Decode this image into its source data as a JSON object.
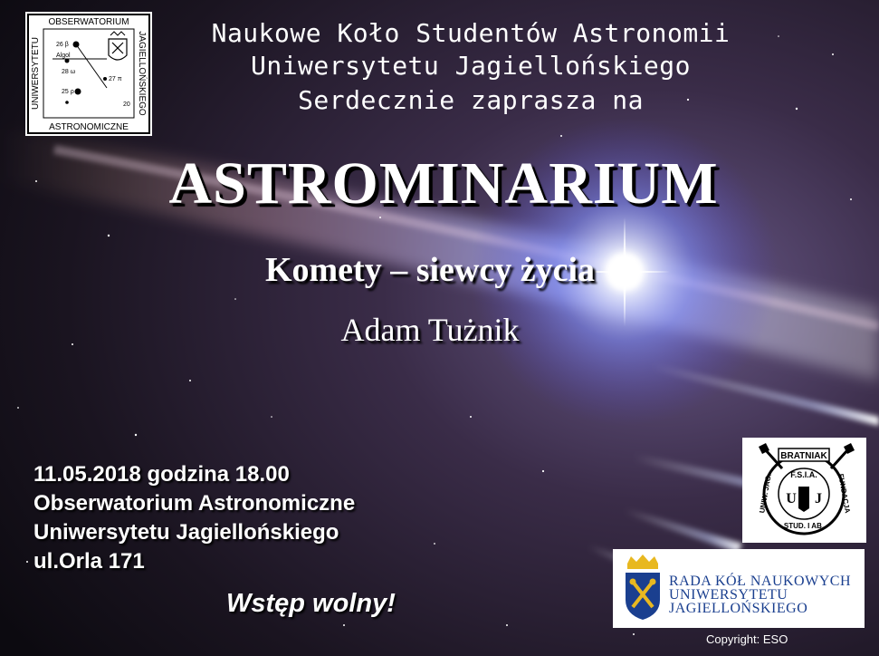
{
  "header": {
    "line1": "Naukowe Koło Studentów Astronomii",
    "line2": "Uniwersytetu Jagiellońskiego",
    "line3": "Serdecznie zaprasza na"
  },
  "title": "ASTROMINARIUM",
  "subtitle": "Komety – siewcy życia",
  "speaker": "Adam Tużnik",
  "event": {
    "datetime": "11.05.2018 godzina 18.00",
    "place1": "Obserwatorium Astronomiczne",
    "place2": "Uniwersytetu Jagiellońskiego",
    "address": "ul.Orla 171"
  },
  "entry": "Wstęp wolny!",
  "logo_observatory": {
    "top": "OBSERWATORIUM",
    "left": "UNIWERSYTETU",
    "right": "JAGIELLOŃSKIEGO",
    "bottom": "ASTRONOMICZNE",
    "star_labels": [
      "26 β",
      "Algol",
      "28 ω",
      "27 π",
      "25 ρ",
      "20"
    ]
  },
  "logo_fsia": {
    "banner": "BRATNIAK",
    "center": "F.S.I.A.",
    "left_letter": "U",
    "right_letter": "J",
    "left_arc": "UNIW. JAG.",
    "right_arc": "FUNDACJA",
    "bottom_arc": "STUD. I AB."
  },
  "logo_rada": {
    "line1": "RADA KÓŁ NAUKOWYCH",
    "line2": "UNIWERSYTETU",
    "line3": "JAGIELLOŃSKIEGO"
  },
  "copyright": "Copyright: ESO",
  "colors": {
    "text": "#ffffff",
    "rada_blue": "#1a3f8f",
    "crown_gold": "#e8b820"
  }
}
